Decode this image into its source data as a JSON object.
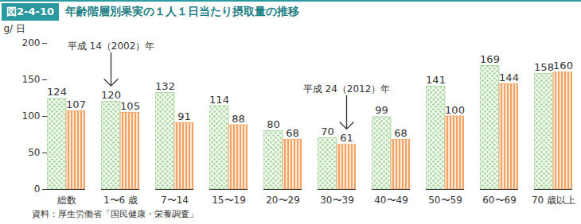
{
  "chart_data": {
    "type": "bar",
    "title": "図2-4-10 年齢階層別果実の１人１日当たり摂取量の推移",
    "y_label": "g/ 日",
    "categories": [
      "総数",
      "1〜6 歳",
      "7〜14",
      "15〜19",
      "20〜29",
      "30〜39",
      "40〜49",
      "50〜59",
      "60〜69",
      "70 歳以上"
    ],
    "series": [
      {
        "name": "平成 14（2002）年",
        "color": "#a3d39a",
        "values": [
          124,
          120,
          132,
          114,
          80,
          70,
          99,
          141,
          169,
          158
        ]
      },
      {
        "name": "平成 24（2012）年",
        "color": "#f3a263",
        "values": [
          107,
          105,
          91,
          88,
          68,
          61,
          68,
          100,
          144,
          160
        ]
      }
    ],
    "ylim": [
      0,
      200
    ],
    "yticks": [
      0,
      50,
      100,
      150,
      200
    ],
    "data_labels": true,
    "caption": "資料：厚生労働省「国民健康・栄養調査」"
  }
}
